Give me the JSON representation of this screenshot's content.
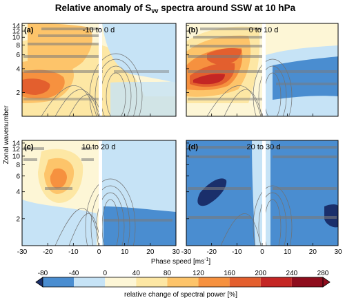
{
  "figure": {
    "title_main": "Relative anomaly of S",
    "title_sub": "v̅v̅",
    "title_rest": " spectra around SSW at 10 hPa",
    "xlabel": "Phase speed [ms",
    "xlabel_exp": "-1",
    "xlabel_end": "]",
    "ylabel": "Zonal wavenumber",
    "colorbar_label": "relative change of spectral power [%]"
  },
  "chart_data": {
    "type": "heatmap",
    "x_ticks": [
      -30,
      -20,
      -10,
      0,
      10,
      20,
      30
    ],
    "xlim": [
      -30,
      30
    ],
    "y_ticks": [
      2,
      4,
      6,
      8,
      10,
      12,
      14
    ],
    "ylim": [
      1,
      15
    ],
    "y_scale": "log",
    "colorbar": {
      "levels": [
        -80,
        -40,
        0,
        40,
        80,
        120,
        160,
        200,
        240,
        280
      ],
      "colors": [
        "#1a2f6b",
        "#4a8dd0",
        "#c6e3f6",
        "#fdf6d6",
        "#fde7a4",
        "#fdc46a",
        "#f6913f",
        "#e35f2e",
        "#c42624",
        "#8e0d1d"
      ]
    },
    "panels": [
      {
        "label": "(a)",
        "title": "-10 to 0 d"
      },
      {
        "label": "(b)",
        "title": "0 to 10 d"
      },
      {
        "label": "(c)",
        "title": "10 to 20 d"
      },
      {
        "label": "(d)",
        "title": "20 to 30 d"
      }
    ]
  }
}
